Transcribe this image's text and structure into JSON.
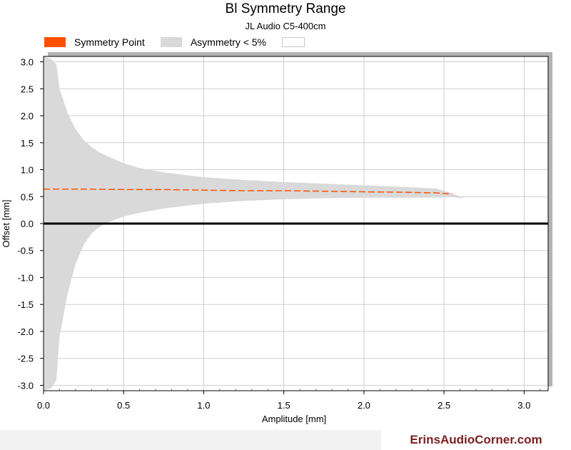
{
  "chart_data": {
    "type": "area",
    "title": "Bl Symmetry Range",
    "subtitle": "JL Audio C5-400cm",
    "xlabel": "Amplitude [mm]",
    "ylabel": "Offset [mm]",
    "xlim": [
      0,
      3.15
    ],
    "ylim": [
      -3.1,
      3.1
    ],
    "x_ticks": [
      "0.0",
      "0.5",
      "1.0",
      "1.5",
      "2.0",
      "2.5",
      "3.0"
    ],
    "y_ticks": [
      "3.0",
      "2.5",
      "2.0",
      "1.5",
      "1.0",
      "0.5",
      "0.0",
      "-0.5",
      "-1.0",
      "-1.5",
      "-2.0",
      "-2.5",
      "-3.0"
    ],
    "grid": true,
    "legend_position": "top-left",
    "series": [
      {
        "name": "Symmetry Point",
        "style": "dashed-line",
        "color": "#FF5000",
        "x": [
          0.0,
          0.25,
          0.5,
          0.75,
          1.0,
          1.25,
          1.5,
          1.75,
          2.0,
          2.25,
          2.45,
          2.55
        ],
        "y": [
          0.64,
          0.64,
          0.63,
          0.63,
          0.62,
          0.61,
          0.61,
          0.6,
          0.59,
          0.58,
          0.57,
          0.55
        ]
      },
      {
        "name": "Asymmetry < 5%",
        "style": "band",
        "color": "#D9D9D9",
        "x": [
          0.0,
          0.05,
          0.08,
          0.1,
          0.15,
          0.2,
          0.25,
          0.3,
          0.35,
          0.4,
          0.5,
          0.6,
          0.75,
          1.0,
          1.25,
          1.5,
          1.75,
          2.0,
          2.25,
          2.45,
          2.5,
          2.55,
          2.62
        ],
        "upper": [
          3.1,
          3.05,
          2.95,
          2.5,
          2.05,
          1.75,
          1.55,
          1.42,
          1.32,
          1.25,
          1.12,
          1.03,
          0.95,
          0.86,
          0.81,
          0.77,
          0.74,
          0.71,
          0.68,
          0.65,
          0.61,
          0.56,
          0.48
        ],
        "lower": [
          -3.1,
          -3.05,
          -2.9,
          -2.1,
          -1.3,
          -0.75,
          -0.4,
          -0.18,
          -0.06,
          0.02,
          0.13,
          0.2,
          0.28,
          0.37,
          0.42,
          0.45,
          0.47,
          0.48,
          0.48,
          0.48,
          0.49,
          0.49,
          0.47
        ]
      },
      {
        "name": "",
        "style": "line",
        "color": "#000000",
        "x": [
          0.0,
          3.15
        ],
        "y": [
          0.0,
          0.0
        ]
      }
    ]
  },
  "legend": {
    "items": [
      {
        "label": "Symmetry Point",
        "color": "#FF5000"
      },
      {
        "label": "Asymmetry < 5%",
        "color": "#D9D9D9"
      }
    ]
  },
  "footer": {
    "brand": "ErinsAudioCorner.com",
    "brand_color": "#7A1F1F"
  }
}
